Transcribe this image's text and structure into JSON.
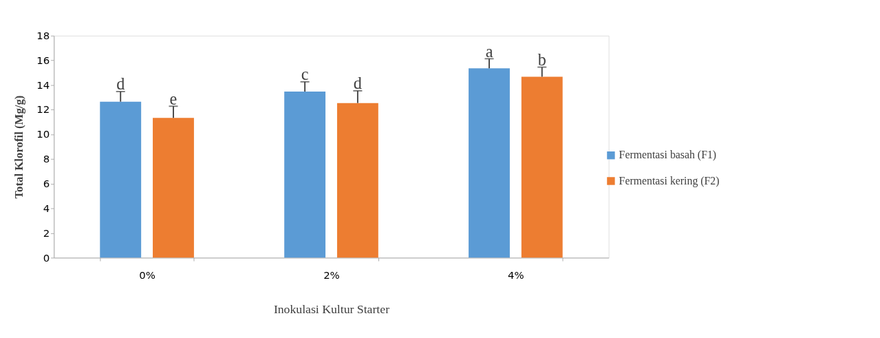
{
  "chart_data": {
    "type": "bar",
    "xlabel": "Inokulasi Kultur Starter",
    "ylabel": "Total Klorofil (Mg/g)",
    "categories": [
      "0%",
      "2%",
      "4%"
    ],
    "series": [
      {
        "name": "Fermentasi basah (F1)",
        "color": "#5b9bd5",
        "values": [
          12.65,
          13.47,
          15.35
        ],
        "errors": [
          [
            12.65,
            13.47
          ],
          [
            13.47,
            14.26
          ],
          [
            15.35,
            16.13
          ]
        ],
        "value_labels": [
          "d",
          "c",
          "a"
        ]
      },
      {
        "name": "Fermentasi kering (F2)",
        "color": "#ed7d31",
        "values": [
          11.34,
          12.54,
          14.67
        ],
        "errors": [
          [
            11.34,
            12.28
          ],
          [
            12.54,
            13.53
          ],
          [
            14.67,
            15.45
          ]
        ],
        "value_labels": [
          "e",
          "d",
          "b"
        ]
      }
    ],
    "ylim": [
      0,
      18
    ],
    "yticks": [
      0,
      2,
      4,
      6,
      8,
      10,
      12,
      14,
      16,
      18
    ],
    "grid": false,
    "legend": "right"
  }
}
